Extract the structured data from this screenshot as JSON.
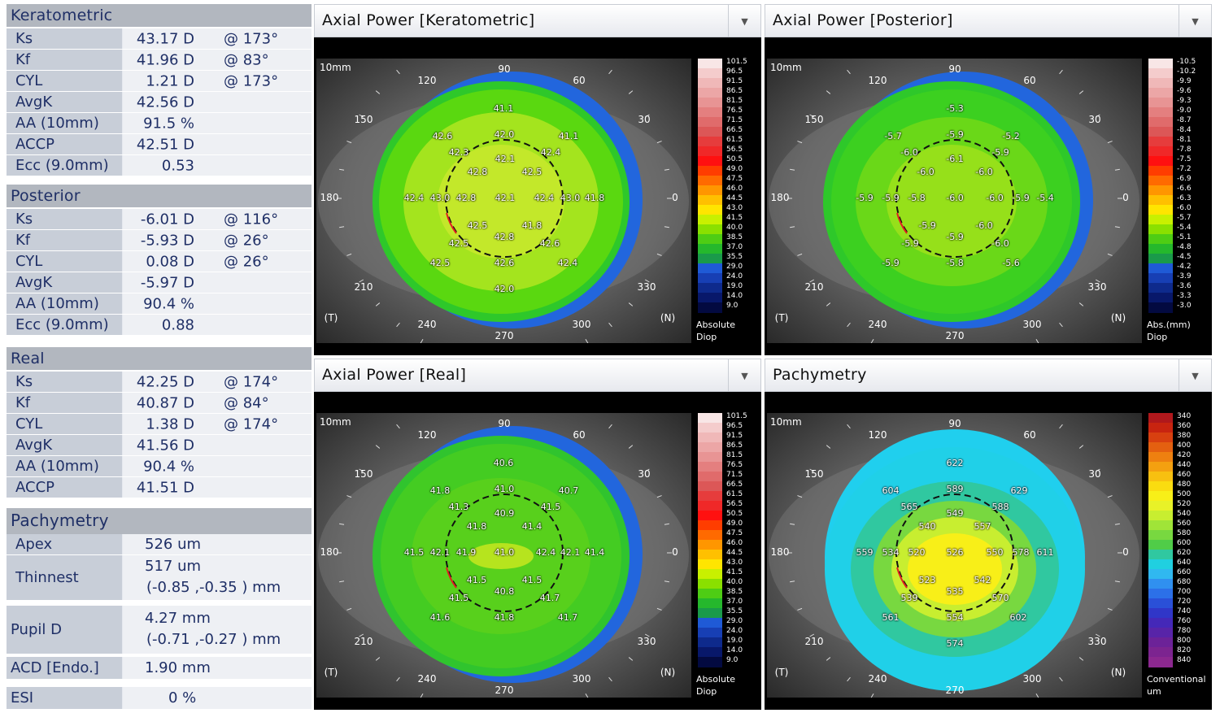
{
  "sections": {
    "kera": {
      "title": "Keratometric",
      "rows": [
        {
          "label": "Ks",
          "value": "43.17 D",
          "axis": "@ 173°"
        },
        {
          "label": "Kf",
          "value": "41.96 D",
          "axis": "@ 83°"
        },
        {
          "label": "CYL",
          "value": "1.21 D",
          "axis": "@ 173°"
        },
        {
          "label": "AvgK",
          "value": "42.56 D",
          "axis": ""
        },
        {
          "label": "AA (10mm)",
          "value": "91.5 %",
          "axis": ""
        },
        {
          "label": "ACCP",
          "value": "42.51 D",
          "axis": ""
        },
        {
          "label": "Ecc (9.0mm)",
          "value": "0.53",
          "axis": ""
        }
      ]
    },
    "post": {
      "title": "Posterior",
      "rows": [
        {
          "label": "Ks",
          "value": "-6.01 D",
          "axis": "@ 116°"
        },
        {
          "label": "Kf",
          "value": "-5.93 D",
          "axis": "@ 26°"
        },
        {
          "label": "CYL",
          "value": "0.08 D",
          "axis": "@ 26°"
        },
        {
          "label": "AvgK",
          "value": "-5.97 D",
          "axis": ""
        },
        {
          "label": "AA (10mm)",
          "value": "90.4 %",
          "axis": ""
        },
        {
          "label": "Ecc (9.0mm)",
          "value": "0.88",
          "axis": ""
        }
      ]
    },
    "real": {
      "title": "Real",
      "rows": [
        {
          "label": "Ks",
          "value": "42.25 D",
          "axis": "@ 174°"
        },
        {
          "label": "Kf",
          "value": "40.87 D",
          "axis": "@ 84°"
        },
        {
          "label": "CYL",
          "value": "1.38 D",
          "axis": "@ 174°"
        },
        {
          "label": "AvgK",
          "value": "41.56 D",
          "axis": ""
        },
        {
          "label": "AA (10mm)",
          "value": "90.4 %",
          "axis": ""
        },
        {
          "label": "ACCP",
          "value": "41.51 D",
          "axis": ""
        }
      ]
    },
    "pachy": {
      "title": "Pachymetry",
      "apex_label": "Apex",
      "apex_value": "526 um",
      "thinnest_label": "Thinnest",
      "thinnest_value": "517 um",
      "thinnest_coord": "(-0.85 ,-0.35 )  mm",
      "pupil_label": "Pupil D",
      "pupil_value": "4.27 mm",
      "pupil_coord": "(-0.71 ,-0.27 )  mm",
      "acd_label": "ACD [Endo.]",
      "acd_value": "1.90 mm",
      "esi_label": "ESI",
      "esi_value": "0 %"
    }
  },
  "panels": [
    {
      "title": "Axial Power [Keratometric]",
      "scale_mm": "10mm",
      "legend_footer": [
        "Absolute",
        "Diop"
      ],
      "legend_values": [
        "101.5",
        "96.5",
        "91.5",
        "86.5",
        "81.5",
        "76.5",
        "71.5",
        "66.5",
        "61.5",
        "56.5",
        "50.5",
        "49.0",
        "47.5",
        "46.0",
        "44.5",
        "43.0",
        "41.5",
        "40.0",
        "38.5",
        "37.0",
        "35.5",
        "29.0",
        "24.0",
        "19.0",
        "14.0",
        "9.0"
      ],
      "points": [
        "41.1",
        "42.6",
        "42.0",
        "41.1",
        "42.3",
        "42.1",
        "42.4",
        "42.8",
        "42.5",
        "42.4",
        "43.0",
        "42.8",
        "42.1",
        "42.4",
        "43.0",
        "41.8",
        "42.5",
        "42.8",
        "41.8",
        "42.5",
        "42.6",
        "42.5",
        "42.6",
        "42.4",
        "42.0"
      ]
    },
    {
      "title": "Axial Power [Posterior]",
      "scale_mm": "10mm",
      "legend_footer": [
        "Abs.(mm)",
        "Diop"
      ],
      "legend_values": [
        "-10.5",
        "-10.2",
        "-9.9",
        "-9.6",
        "-9.3",
        "-9.0",
        "-8.7",
        "-8.4",
        "-8.1",
        "-7.8",
        "-7.5",
        "-7.2",
        "-6.9",
        "-6.6",
        "-6.3",
        "-6.0",
        "-5.7",
        "-5.4",
        "-5.1",
        "-4.8",
        "-4.5",
        "-4.2",
        "-3.9",
        "-3.6",
        "-3.3",
        "-3.0"
      ],
      "points": [
        "-5.3",
        "-5.7",
        "-5.9",
        "-5.2",
        "-6.0",
        "-6.1",
        "-5.9",
        "-6.0",
        "-6.0",
        "-5.9",
        "-5.9",
        "-5.8",
        "-6.0",
        "-6.0",
        "-5.9",
        "-5.4",
        "-5.9",
        "-6.0",
        "-5.9",
        "-5.9",
        "-6.0",
        "-5.9",
        "-5.8",
        "-5.6"
      ]
    },
    {
      "title": "Axial Power [Real]",
      "scale_mm": "10mm",
      "legend_footer": [
        "Absolute",
        "Diop"
      ],
      "legend_values": [
        "101.5",
        "96.5",
        "91.5",
        "86.5",
        "81.5",
        "76.5",
        "71.5",
        "66.5",
        "61.5",
        "56.5",
        "50.5",
        "49.0",
        "47.5",
        "46.0",
        "44.5",
        "43.0",
        "41.5",
        "40.0",
        "38.5",
        "37.0",
        "35.5",
        "29.0",
        "24.0",
        "19.0",
        "14.0",
        "9.0"
      ],
      "points": [
        "40.6",
        "41.8",
        "41.0",
        "40.7",
        "41.3",
        "40.9",
        "41.5",
        "41.8",
        "41.4",
        "41.5",
        "42.1",
        "41.9",
        "41.0",
        "42.4",
        "42.1",
        "41.4",
        "41.5",
        "41.5",
        "40.8",
        "41.5",
        "41.7",
        "41.6",
        "41.8",
        "41.7"
      ]
    },
    {
      "title": "Pachymetry",
      "scale_mm": "10mm",
      "legend_footer": [
        "Conventional",
        "um"
      ],
      "legend_values": [
        "340",
        "360",
        "380",
        "400",
        "420",
        "440",
        "460",
        "480",
        "500",
        "520",
        "540",
        "560",
        "580",
        "600",
        "620",
        "640",
        "660",
        "680",
        "700",
        "720",
        "740",
        "760",
        "780",
        "800",
        "820",
        "840"
      ],
      "points": [
        "622",
        "604",
        "589",
        "629",
        "565",
        "549",
        "588",
        "540",
        "557",
        "559",
        "534",
        "520",
        "526",
        "550",
        "578",
        "611",
        "523",
        "542",
        "539",
        "535",
        "570",
        "561",
        "554",
        "602",
        "574"
      ]
    }
  ],
  "angles": {
    "a90": "90",
    "a120": "120",
    "a60": "60",
    "a150": "150",
    "a30": "30",
    "a180": "180",
    "a0": "0",
    "a210": "210",
    "a330": "330",
    "a240": "240",
    "a300": "300",
    "a270": "270",
    "temporal": "(T)",
    "nasal": "(N)"
  },
  "colors": {
    "header_bg": "#b2b7bf",
    "label_bg": "#c8ced8",
    "text": "#1f2f66"
  }
}
